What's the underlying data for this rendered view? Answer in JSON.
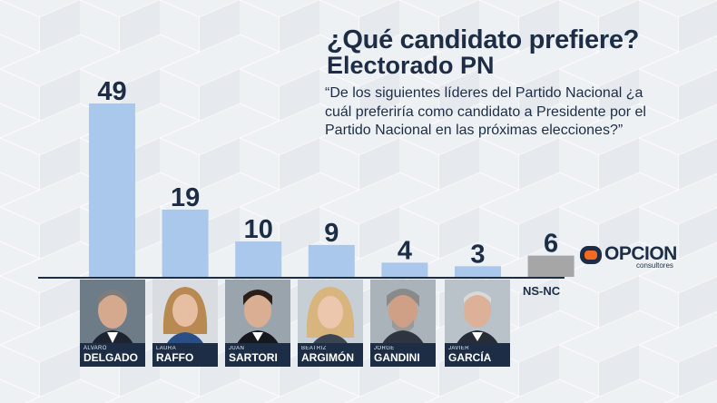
{
  "title": "¿Qué candidato prefiere?",
  "subtitle": "Electorado PN",
  "question": "“De los siguientes líderes del Partido Nacional ¿a cuál preferiría como candidato a Presidente por el Partido Nacional en las próximas elecciones?”",
  "chart_data": {
    "type": "bar",
    "categories": [
      "ÁLVARO DELGADO",
      "LAURA RAFFO",
      "JUAN SARTORI",
      "BEATRIZ ARGIMÓN",
      "JORGE GANDINI",
      "JAVIER GARCÍA",
      "NS-NC"
    ],
    "values": [
      49,
      19,
      10,
      9,
      4,
      3,
      6
    ],
    "ylim": [
      0,
      50
    ],
    "colors": [
      "#a9c8ec",
      "#a9c8ec",
      "#a9c8ec",
      "#a9c8ec",
      "#a9c8ec",
      "#a9c8ec",
      "#a6a6a6"
    ],
    "grid": false,
    "legend": "none"
  },
  "candidates": [
    {
      "first": "ÁLVARO",
      "last": "DELGADO"
    },
    {
      "first": "LAURA",
      "last": "RAFFO"
    },
    {
      "first": "JUAN",
      "last": "SARTORI"
    },
    {
      "first": "BEATRIZ",
      "last": "ARGIMÓN"
    },
    {
      "first": "JORGE",
      "last": "GANDINI"
    },
    {
      "first": "JAVIER",
      "last": "GARCÍA"
    }
  ],
  "nsnc_label": "NS-NC",
  "logo": {
    "word": "OPCION",
    "sub": "consultores",
    "accent": "#f26b21"
  }
}
